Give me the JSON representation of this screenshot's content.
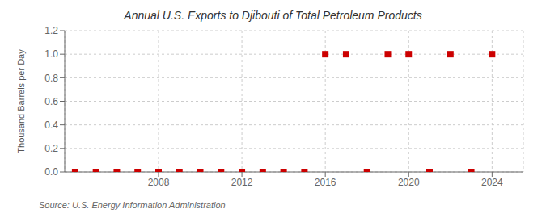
{
  "chart_data": {
    "type": "scatter",
    "title": "Annual U.S. Exports to Djibouti of Total Petroleum Products",
    "ylabel": "Thousand Barrels per Day",
    "annotations": [
      "Source: U.S. Energy Information Administration"
    ],
    "x": [
      2004,
      2005,
      2006,
      2007,
      2008,
      2009,
      2010,
      2011,
      2012,
      2013,
      2014,
      2015,
      2016,
      2017,
      2018,
      2019,
      2020,
      2021,
      2022,
      2023,
      2024
    ],
    "values": [
      0,
      0,
      0,
      0,
      0,
      0,
      0,
      0,
      0,
      0,
      0,
      0,
      1,
      1,
      0,
      1,
      1,
      0,
      1,
      0,
      1
    ],
    "color": "#cc0000",
    "marker": "square",
    "xlim": [
      2003.5,
      2025.5
    ],
    "xticks": [
      2008,
      2012,
      2016,
      2020,
      2024
    ],
    "ylim": [
      0,
      1.2
    ],
    "yticks": [
      {
        "value": 0,
        "label": "0.0"
      },
      0.2,
      0.4,
      0.6,
      0.8,
      {
        "value": 1,
        "label": "1.0"
      },
      1.2
    ],
    "grid": true
  }
}
